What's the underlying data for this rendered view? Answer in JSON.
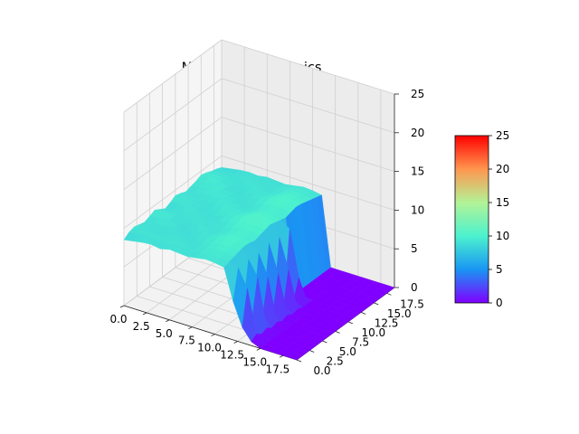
{
  "chart_data": {
    "type": "surface3d",
    "title": "Mutualistic Dynamics",
    "x_ticks": [
      "0.0",
      "2.5",
      "5.0",
      "7.5",
      "10.0",
      "12.5",
      "15.0",
      "17.5"
    ],
    "y_ticks": [
      "0.0",
      "2.5",
      "5.0",
      "7.5",
      "10.0",
      "12.5",
      "15.0",
      "17.5"
    ],
    "z_ticks": [
      "0",
      "5",
      "10",
      "15",
      "20",
      "25"
    ],
    "xlim": [
      0,
      19
    ],
    "ylim": [
      0,
      19
    ],
    "zlim": [
      0,
      25
    ],
    "grid": true,
    "colormap": "rainbow",
    "colorbar": {
      "range": [
        0,
        25
      ],
      "ticks": [
        "0",
        "5",
        "10",
        "15",
        "20",
        "25"
      ],
      "stops": [
        "#8000ff",
        "#1996f3",
        "#4cf2ce",
        "#b2f396",
        "#ff964f",
        "#ff0000"
      ]
    },
    "surface": {
      "description_values": {
        "plateau_height_range": [
          8,
          10
        ],
        "floor_height": 0
      },
      "rows": [
        [
          8.5,
          9.0,
          9.2,
          9.0,
          8.8,
          9.1,
          9.4,
          9.0,
          8.6,
          8.9,
          9.3,
          9.1,
          8.8,
          9.0,
          9.2,
          9.5,
          9.3,
          9.0,
          8.8,
          8.5
        ],
        [
          8.7,
          9.1,
          9.3,
          9.2,
          9.0,
          9.3,
          9.5,
          9.1,
          8.9,
          9.1,
          9.4,
          9.2,
          9.0,
          9.2,
          9.4,
          9.6,
          9.4,
          9.1,
          8.9,
          8.7
        ],
        [
          8.9,
          9.2,
          9.0,
          8.8,
          9.1,
          9.4,
          9.2,
          8.9,
          9.1,
          9.3,
          9.1,
          8.9,
          9.2,
          9.4,
          9.6,
          9.4,
          9.2,
          9.0,
          8.8,
          8.9
        ],
        [
          9.0,
          9.3,
          9.1,
          9.0,
          9.2,
          9.0,
          8.8,
          9.1,
          9.3,
          9.1,
          8.9,
          9.1,
          9.3,
          9.5,
          9.3,
          9.1,
          8.9,
          9.1,
          9.2,
          9.0
        ],
        [
          8.8,
          9.0,
          9.2,
          9.1,
          8.9,
          8.7,
          9.0,
          9.2,
          9.0,
          8.8,
          9.0,
          9.2,
          9.4,
          9.2,
          9.0,
          8.8,
          9.0,
          9.2,
          9.1,
          8.9
        ],
        [
          9.1,
          9.3,
          9.2,
          9.0,
          8.8,
          9.1,
          9.3,
          9.1,
          8.9,
          9.1,
          9.3,
          9.5,
          9.3,
          9.1,
          8.9,
          9.1,
          9.3,
          9.2,
          9.0,
          9.1
        ],
        [
          9.0,
          9.2,
          9.0,
          8.9,
          9.1,
          9.3,
          9.1,
          8.9,
          9.1,
          9.3,
          9.5,
          9.3,
          9.1,
          8.9,
          9.1,
          9.3,
          9.2,
          9.0,
          8.9,
          9.0
        ],
        [
          8.9,
          9.1,
          9.0,
          9.2,
          9.4,
          9.2,
          9.0,
          9.2,
          9.4,
          9.6,
          9.4,
          9.2,
          9.0,
          9.2,
          9.4,
          9.3,
          9.1,
          9.0,
          9.1,
          8.9
        ],
        [
          9.1,
          9.3,
          9.4,
          9.5,
          9.7,
          9.6,
          9.4,
          9.6,
          9.8,
          10.0,
          9.8,
          9.6,
          9.4,
          9.6,
          9.8,
          9.7,
          9.5,
          9.4,
          9.3,
          9.1
        ],
        [
          9.3,
          9.5,
          9.7,
          9.9,
          10.1,
          10.0,
          9.8,
          10.0,
          10.2,
          10.4,
          10.2,
          10.0,
          9.8,
          10.0,
          10.2,
          10.1,
          9.9,
          9.7,
          9.5,
          9.3
        ],
        [
          9.2,
          9.4,
          9.6,
          9.8,
          10.0,
          9.9,
          9.7,
          9.9,
          10.1,
          10.3,
          10.1,
          9.9,
          9.7,
          9.9,
          10.1,
          10.0,
          9.8,
          9.6,
          9.4,
          9.2
        ],
        [
          9.0,
          9.2,
          9.4,
          9.6,
          9.8,
          9.7,
          9.5,
          9.7,
          9.9,
          10.1,
          9.9,
          9.7,
          9.5,
          9.7,
          9.9,
          9.8,
          9.6,
          9.4,
          9.2,
          9.0
        ],
        [
          5.0,
          8.8,
          3.5,
          8.9,
          2.5,
          8.7,
          2.0,
          9.0,
          1.5,
          8.8,
          1.2,
          8.9,
          0.0,
          0.0,
          0.0,
          0.0,
          0.0,
          0.0,
          0.0,
          0.0
        ],
        [
          2.0,
          6.5,
          2.5,
          7.0,
          1.5,
          6.0,
          1.0,
          5.5,
          0.8,
          5.0,
          0.5,
          3.0,
          0.0,
          0.0,
          0.0,
          0.0,
          0.0,
          0.0,
          0.0,
          0.0
        ],
        [
          0.5,
          1.0,
          0.5,
          0.8,
          0.3,
          0.6,
          0.2,
          0.5,
          0.1,
          0.3,
          0.0,
          0.0,
          0.0,
          0.0,
          0.0,
          0.0,
          0.0,
          0.0,
          0.0,
          0.0
        ],
        [
          0.0,
          0.0,
          0.0,
          0.0,
          0.0,
          0.0,
          0.0,
          0.0,
          0.0,
          0.0,
          0.0,
          0.0,
          0.0,
          0.0,
          0.0,
          0.0,
          0.0,
          0.0,
          0.0,
          0.0
        ],
        [
          0.0,
          0.0,
          0.0,
          0.0,
          0.0,
          0.0,
          0.0,
          0.0,
          0.0,
          0.0,
          0.0,
          0.0,
          0.0,
          0.0,
          0.0,
          0.0,
          0.0,
          0.0,
          0.0,
          0.0
        ],
        [
          0.0,
          0.0,
          0.0,
          0.0,
          0.0,
          0.0,
          0.0,
          0.0,
          0.0,
          0.0,
          0.0,
          0.0,
          0.0,
          0.0,
          0.0,
          0.0,
          0.0,
          0.0,
          0.0,
          0.0
        ],
        [
          0.0,
          0.0,
          0.0,
          0.0,
          0.0,
          0.0,
          0.0,
          0.0,
          0.0,
          0.0,
          0.0,
          0.0,
          0.0,
          0.0,
          0.0,
          0.0,
          0.0,
          0.0,
          0.0,
          0.0
        ],
        [
          0.0,
          0.0,
          0.0,
          0.0,
          0.0,
          0.0,
          0.0,
          0.0,
          0.0,
          0.0,
          0.0,
          0.0,
          0.0,
          0.0,
          0.0,
          0.0,
          0.0,
          0.0,
          0.0,
          0.0
        ]
      ]
    }
  }
}
